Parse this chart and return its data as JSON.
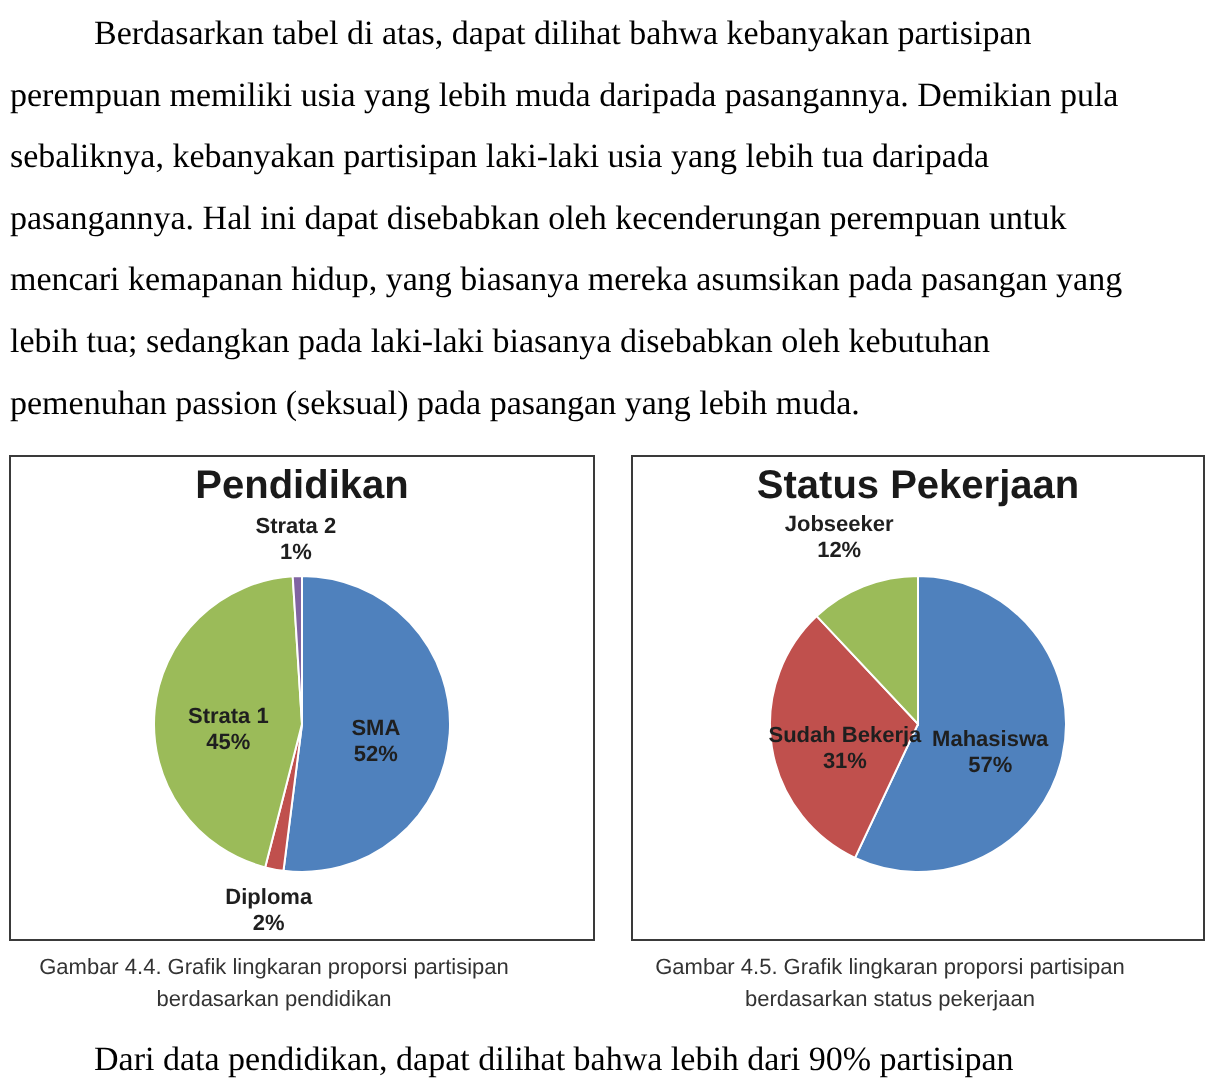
{
  "chart_data": [
    {
      "type": "other",
      "annotations": [
        "Berdasarkan tabel di atas, dapat dilihat bahwa kebanyakan partisipan perempuan memiliki usia yang lebih muda daripada pasangannya. Demikian pula sebaliknya, kebanyakan partisipan laki-laki usia yang lebih tua daripada pasangannya. Hal ini dapat disebabkan oleh kecenderungan perempuan untuk mencari kemapanan hidup, yang biasanya mereka asumsikan pada pasangan yang lebih tua; sedangkan pada laki-laki biasanya disebabkan oleh kebutuhan pemenuhan passion (seksual) pada pasangan yang lebih muda."
      ]
    },
    {
      "type": "pie",
      "title": "Pendidikan",
      "categories": [
        "SMA",
        "Diploma",
        "Strata 1",
        "Strata 2"
      ],
      "values": [
        52,
        2,
        45,
        1
      ],
      "colors": [
        "#4f81bd",
        "#c0504d",
        "#9bbb59",
        "#8064a2"
      ],
      "value_labels": [
        "52%",
        "2%",
        "45%",
        "1%"
      ],
      "annotations": [
        "Gambar 4.4. Grafik lingkaran proporsi partisipan berdasarkan pendidikan"
      ]
    },
    {
      "type": "pie",
      "title": "Status Pekerjaan",
      "categories": [
        "Mahasiswa",
        "Sudah Bekerja",
        "Jobseeker"
      ],
      "values": [
        57,
        31,
        12
      ],
      "colors": [
        "#4f81bd",
        "#c0504d",
        "#9bbb59"
      ],
      "value_labels": [
        "57%",
        "31%",
        "12%"
      ],
      "annotations": [
        "Gambar 4.5. Grafik lingkaran proporsi partisipan berdasarkan status pekerjaan"
      ]
    },
    {
      "type": "other",
      "annotations": [
        "Dari data pendidikan, dapat dilihat bahwa lebih dari 90% partisipan"
      ]
    }
  ]
}
